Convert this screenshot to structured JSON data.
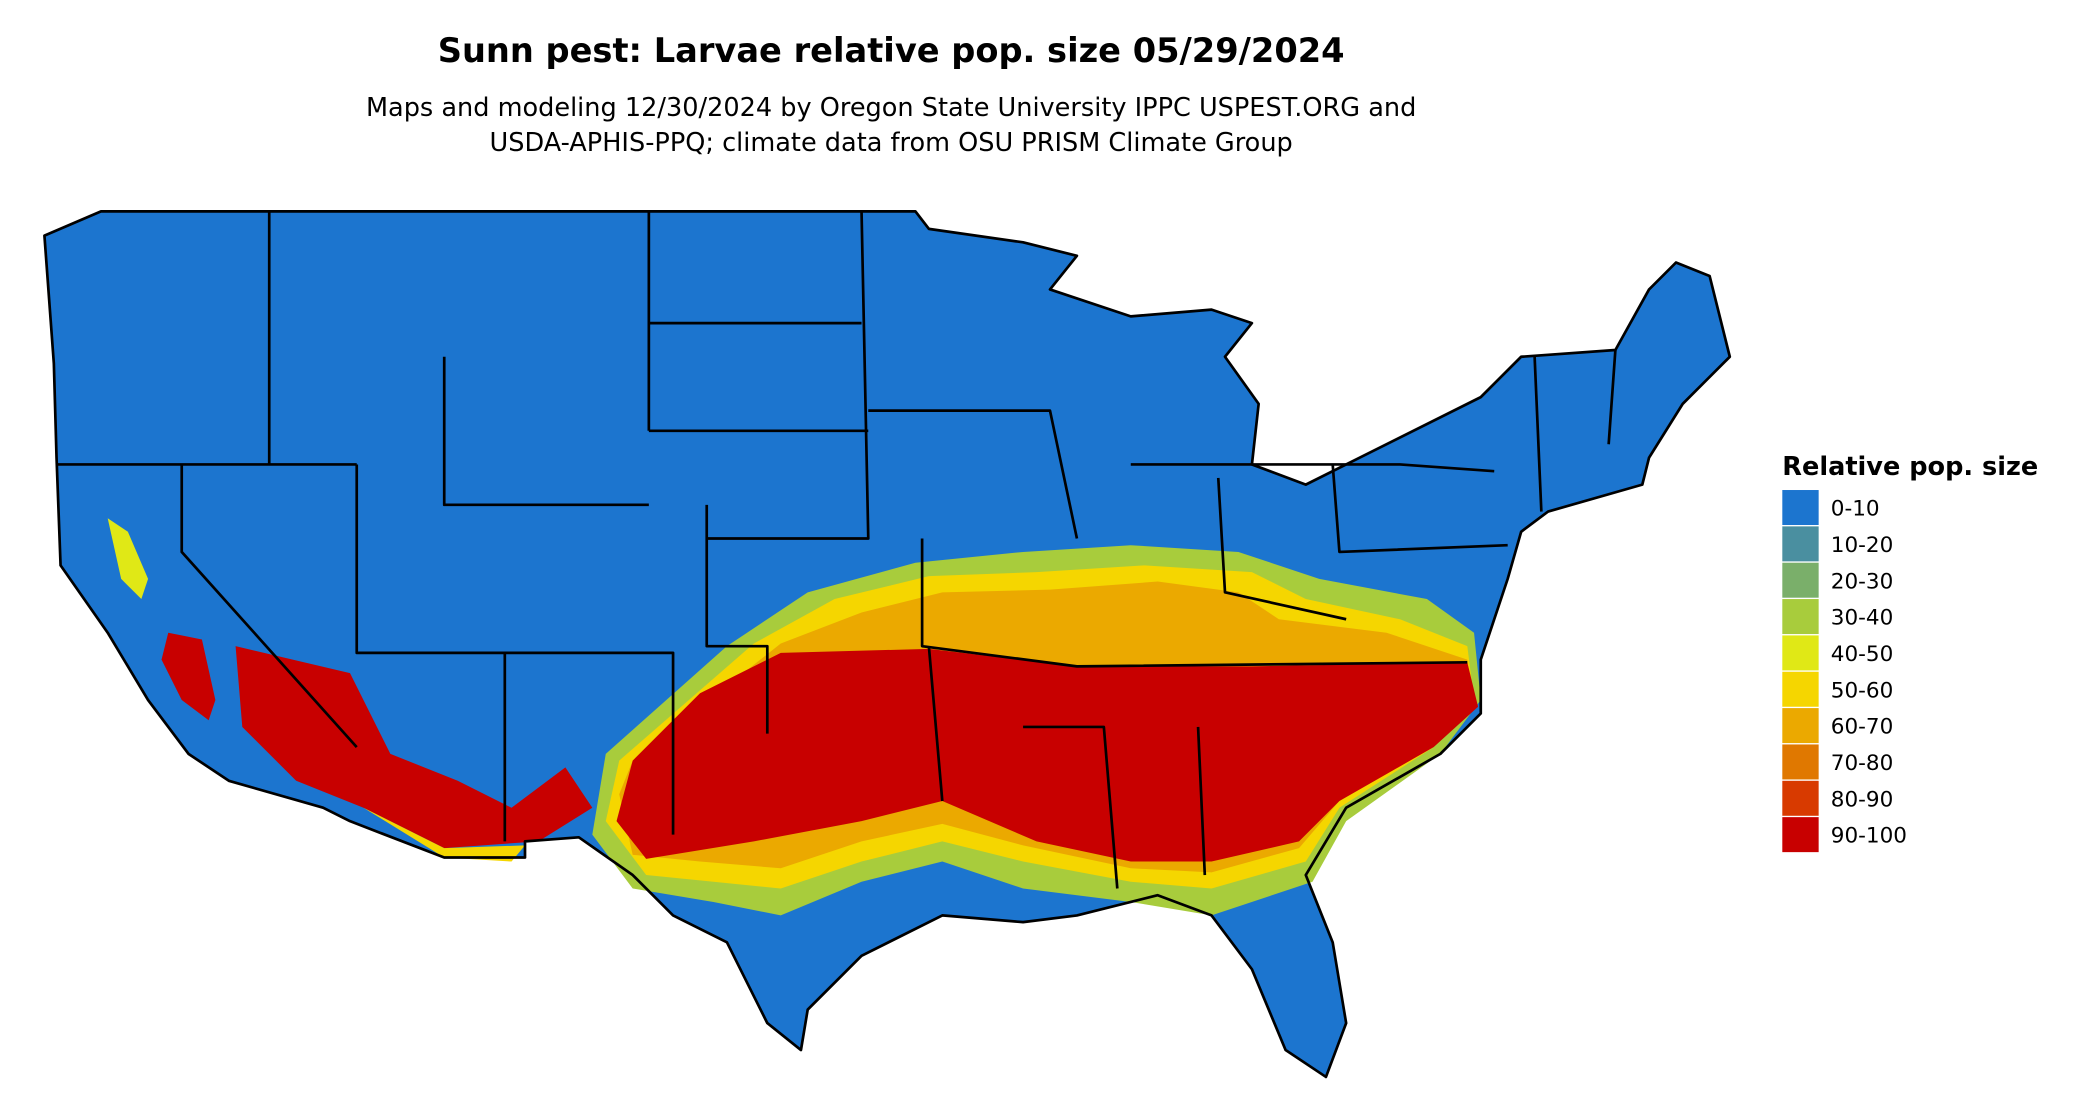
{
  "title": "Sunn pest: Larvae relative pop. size 05/29/2024",
  "subtitle": [
    "Maps and modeling 12/30/2024 by Oregon State University IPPC USPEST.ORG and",
    "USDA-APHIS-PPQ; climate data from OSU PRISM Climate Group"
  ],
  "legend": {
    "title": "Relative pop. size",
    "items": [
      {
        "label": "0-10",
        "color": "#1c75cf"
      },
      {
        "label": "10-20",
        "color": "#4a8fa0"
      },
      {
        "label": "20-30",
        "color": "#7aaf6a"
      },
      {
        "label": "30-40",
        "color": "#a8cc3c"
      },
      {
        "label": "40-50",
        "color": "#e0e816"
      },
      {
        "label": "50-60",
        "color": "#f5d600"
      },
      {
        "label": "60-70",
        "color": "#eba900"
      },
      {
        "label": "70-80",
        "color": "#e07800"
      },
      {
        "label": "80-90",
        "color": "#d83a00"
      },
      {
        "label": "90-100",
        "color": "#c80000"
      }
    ]
  }
}
